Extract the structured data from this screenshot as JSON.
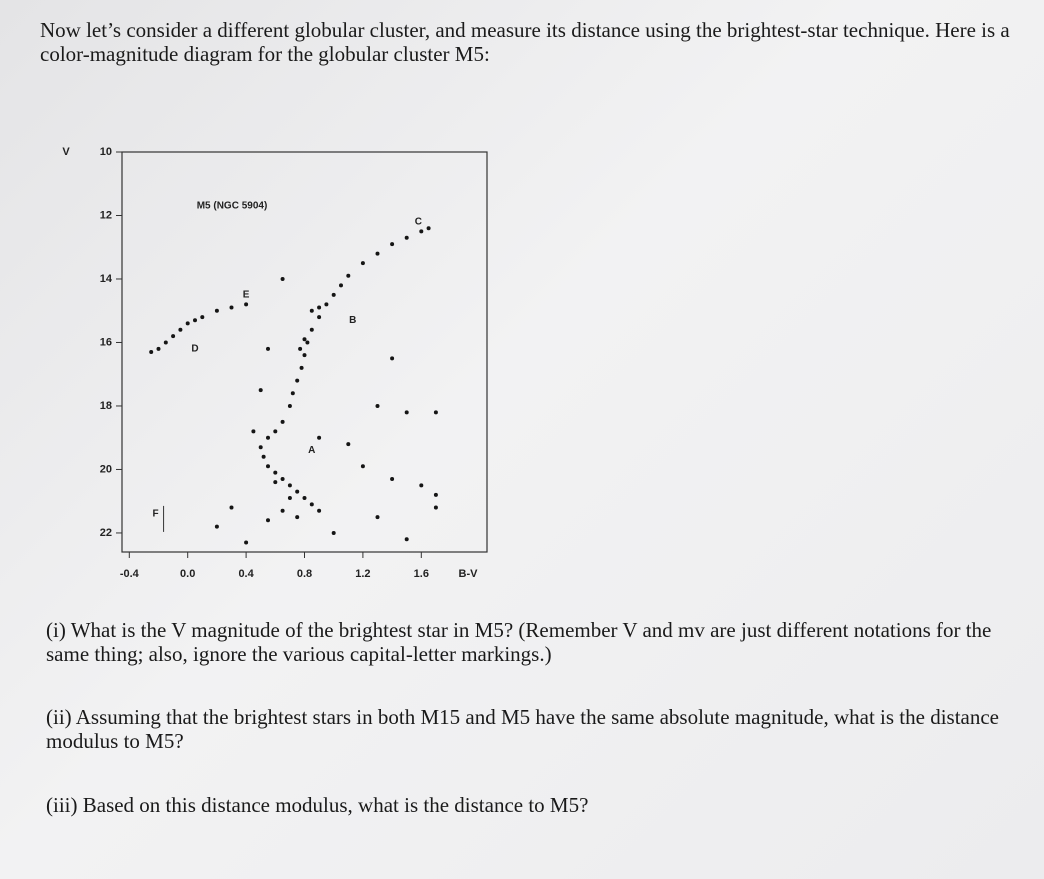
{
  "intro": "Now let’s consider a different globular cluster, and measure its distance using the brightest-star technique. Here is a color-magnitude diagram for the globular cluster M5:",
  "chart_data": {
    "type": "scatter",
    "title": "M5 (NGC 5904)",
    "x_label": "B-V",
    "y_label": "V",
    "xlim": [
      -0.45,
      2.05
    ],
    "ylim": [
      10,
      22.6
    ],
    "y_inverted": true,
    "xticks": [
      -0.4,
      {
        "value": 0,
        "label": "0.0"
      },
      0.4,
      0.8,
      1.2,
      1.6
    ],
    "yticks": [
      10,
      12,
      14,
      16,
      18,
      20,
      22
    ],
    "color": "#151515",
    "x": [
      0.75,
      0.78,
      0.8,
      0.82,
      0.85,
      0.9,
      0.95,
      1.0,
      1.05,
      1.1,
      1.2,
      1.3,
      1.4,
      1.5,
      1.6,
      1.65,
      0.72,
      0.77,
      0.8,
      0.9,
      0.85,
      -0.2,
      -0.15,
      -0.1,
      -0.05,
      0.0,
      0.05,
      0.1,
      0.2,
      0.3,
      0.4,
      -0.25,
      0.7,
      0.65,
      0.6,
      0.55,
      0.5,
      0.52,
      0.55,
      0.6,
      0.65,
      0.7,
      0.75,
      0.8,
      0.85,
      0.6,
      0.7,
      0.65,
      0.55,
      0.75,
      0.9,
      0.65,
      0.55,
      1.4,
      1.3,
      1.5,
      1.7,
      1.2,
      1.4,
      1.6,
      1.7,
      1.3,
      1.7,
      0.3,
      0.2,
      0.4,
      1.0,
      1.5,
      0.9,
      1.1,
      0.5,
      0.45
    ],
    "values": [
      17.2,
      16.8,
      16.4,
      16.0,
      15.6,
      15.2,
      14.8,
      14.5,
      14.2,
      13.9,
      13.5,
      13.2,
      12.9,
      12.7,
      12.5,
      12.4,
      17.6,
      16.2,
      15.9,
      14.9,
      15.0,
      16.2,
      16.0,
      15.8,
      15.6,
      15.4,
      15.3,
      15.2,
      15.0,
      14.9,
      14.8,
      16.3,
      18.0,
      18.5,
      18.8,
      19.0,
      19.3,
      19.6,
      19.9,
      20.1,
      20.3,
      20.5,
      20.7,
      20.9,
      21.1,
      20.4,
      20.9,
      21.3,
      21.6,
      21.5,
      21.3,
      14.0,
      16.2,
      16.5,
      18.0,
      18.2,
      18.2,
      19.9,
      20.3,
      20.5,
      20.8,
      21.5,
      21.2,
      21.2,
      21.8,
      22.3,
      22.0,
      22.2,
      19.0,
      19.2,
      17.5,
      18.8
    ],
    "annotations": [
      {
        "text": "A",
        "x": 0.85,
        "y": 19.4
      },
      {
        "text": "B",
        "x": 1.13,
        "y": 15.3
      },
      {
        "text": "C",
        "x": 1.58,
        "y": 12.2
      },
      {
        "text": "D",
        "x": 0.05,
        "y": 16.2
      },
      {
        "text": "E",
        "x": 0.4,
        "y": 14.5
      },
      {
        "text": "F",
        "x": -0.22,
        "y": 21.4
      }
    ]
  },
  "questions": [
    "(i) What is the V magnitude of the brightest star in M5? (Remember V and mv are just different notations for the same thing; also, ignore the various capital-letter markings.)",
    "(ii) Assuming that the brightest stars in both M15 and M5 have the same absolute magnitude, what is the distance modulus to M5?",
    "(iii) Based on this distance modulus, what is the distance to M5?"
  ]
}
